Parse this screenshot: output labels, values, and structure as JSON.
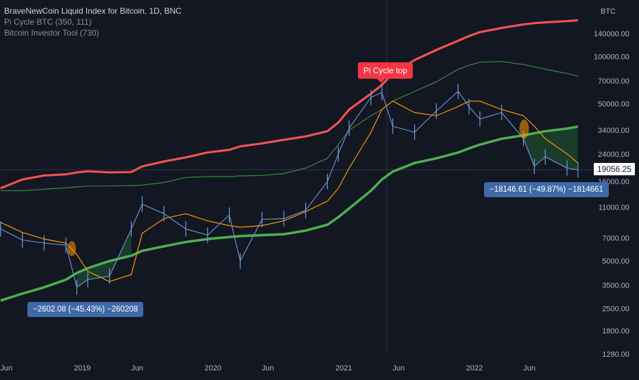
{
  "legend": {
    "title": "BraveNewCoin Liquid Index for Bitcoin, 1D, BNC",
    "indicator1": "Pi Cycle BTC (350, 111)",
    "indicator2": "Bitcoin Investor Tool  (730)"
  },
  "colors": {
    "background": "#131722",
    "price": "#6f9bdc",
    "pi_long": "#ef5350",
    "ma_111": "#ff9800",
    "investor_low": "#4caf50",
    "investor_top": "#388e3c",
    "callout": "#3f6aa8"
  },
  "annotations": {
    "pi_cycle_top": "Pi Cycle top",
    "drawdown_2018": "−2602.08 (−45.43%) −260208",
    "drawdown_2022": "−18146.61 (−49.87%) −1814661"
  },
  "current_price_label": "19056.25",
  "chart_data": {
    "type": "line",
    "title": "BraveNewCoin Liquid Index for Bitcoin, 1D, BNC",
    "ylabel": "BTC",
    "y_scale": "log",
    "ylim": [
      1280,
      200000
    ],
    "x_ticks": [
      "Jun",
      "2019",
      "Jun",
      "2020",
      "Jun",
      "2021",
      "Jun",
      "2022",
      "Jun"
    ],
    "y_ticks": [
      "140000.00",
      "100000.00",
      "70000.00",
      "50000.00",
      "34000.00",
      "24000.00",
      "16000.00",
      "11000.00",
      "7000.00",
      "5000.00",
      "3500.00",
      "2500.00",
      "1800.00",
      "1280.00"
    ],
    "y_tick_values": [
      140000,
      100000,
      70000,
      50000,
      34000,
      24000,
      16000,
      11000,
      7000,
      5000,
      3500,
      2500,
      1800,
      1280
    ],
    "x": [
      "2018-05",
      "2018-07",
      "2018-09",
      "2018-11",
      "2018-12",
      "2019-01",
      "2019-03",
      "2019-05",
      "2019-06",
      "2019-08",
      "2019-10",
      "2019-12",
      "2020-02",
      "2020-03",
      "2020-05",
      "2020-07",
      "2020-09",
      "2020-11",
      "2020-12",
      "2021-01",
      "2021-03",
      "2021-04",
      "2021-05",
      "2021-07",
      "2021-09",
      "2021-11",
      "2021-12",
      "2022-01",
      "2022-03",
      "2022-05",
      "2022-06",
      "2022-07",
      "2022-09",
      "2022-10"
    ],
    "series": [
      {
        "name": "BraveNewCoin Liquid Index for Bitcoin",
        "values": [
          8000,
          6800,
          6500,
          6300,
          3400,
          3800,
          4000,
          8000,
          11500,
          10000,
          8000,
          7300,
          9800,
          5000,
          9200,
          9300,
          10500,
          16000,
          24000,
          35000,
          55000,
          59000,
          36000,
          33000,
          45000,
          60000,
          48000,
          40000,
          44000,
          30000,
          20000,
          23000,
          19500,
          19000
        ]
      },
      {
        "values": [
          14500,
          16500,
          17500,
          17800,
          18300,
          18600,
          18300,
          18400,
          20000,
          21500,
          22800,
          24500,
          25500,
          26800,
          28000,
          29500,
          31000,
          33500,
          38000,
          46000,
          58000,
          66000,
          78000,
          95000,
          110000,
          126000,
          135000,
          143000,
          152000,
          160000,
          163000,
          165000,
          168000,
          170000
        ]
      },
      {
        "values": [
          8800,
          7600,
          6900,
          6500,
          5500,
          4300,
          3700,
          4100,
          7500,
          9300,
          10000,
          9000,
          8400,
          8200,
          8400,
          9000,
          10300,
          12000,
          14500,
          19500,
          33000,
          46000,
          52000,
          44000,
          42000,
          48000,
          52000,
          52000,
          46000,
          42000,
          36000,
          30000,
          24000,
          21000
        ]
      },
      {
        "values": [
          2800,
          3100,
          3400,
          3800,
          4200,
          4500,
          5000,
          5400,
          5800,
          6200,
          6600,
          6900,
          7100,
          7200,
          7300,
          7400,
          7800,
          8500,
          9500,
          10800,
          14000,
          16500,
          18500,
          21000,
          22500,
          24500,
          26000,
          27500,
          30000,
          31500,
          32500,
          33500,
          34800,
          35800
        ]
      },
      {
        "values": [
          14000,
          14000,
          14300,
          14600,
          14800,
          15000,
          15000,
          15100,
          15200,
          15800,
          17000,
          17200,
          17200,
          17400,
          17500,
          18000,
          19500,
          22500,
          27500,
          34000,
          42000,
          46000,
          52000,
          60000,
          69000,
          83000,
          88000,
          92000,
          93000,
          89000,
          86000,
          83000,
          78000,
          75000
        ]
      }
    ]
  }
}
